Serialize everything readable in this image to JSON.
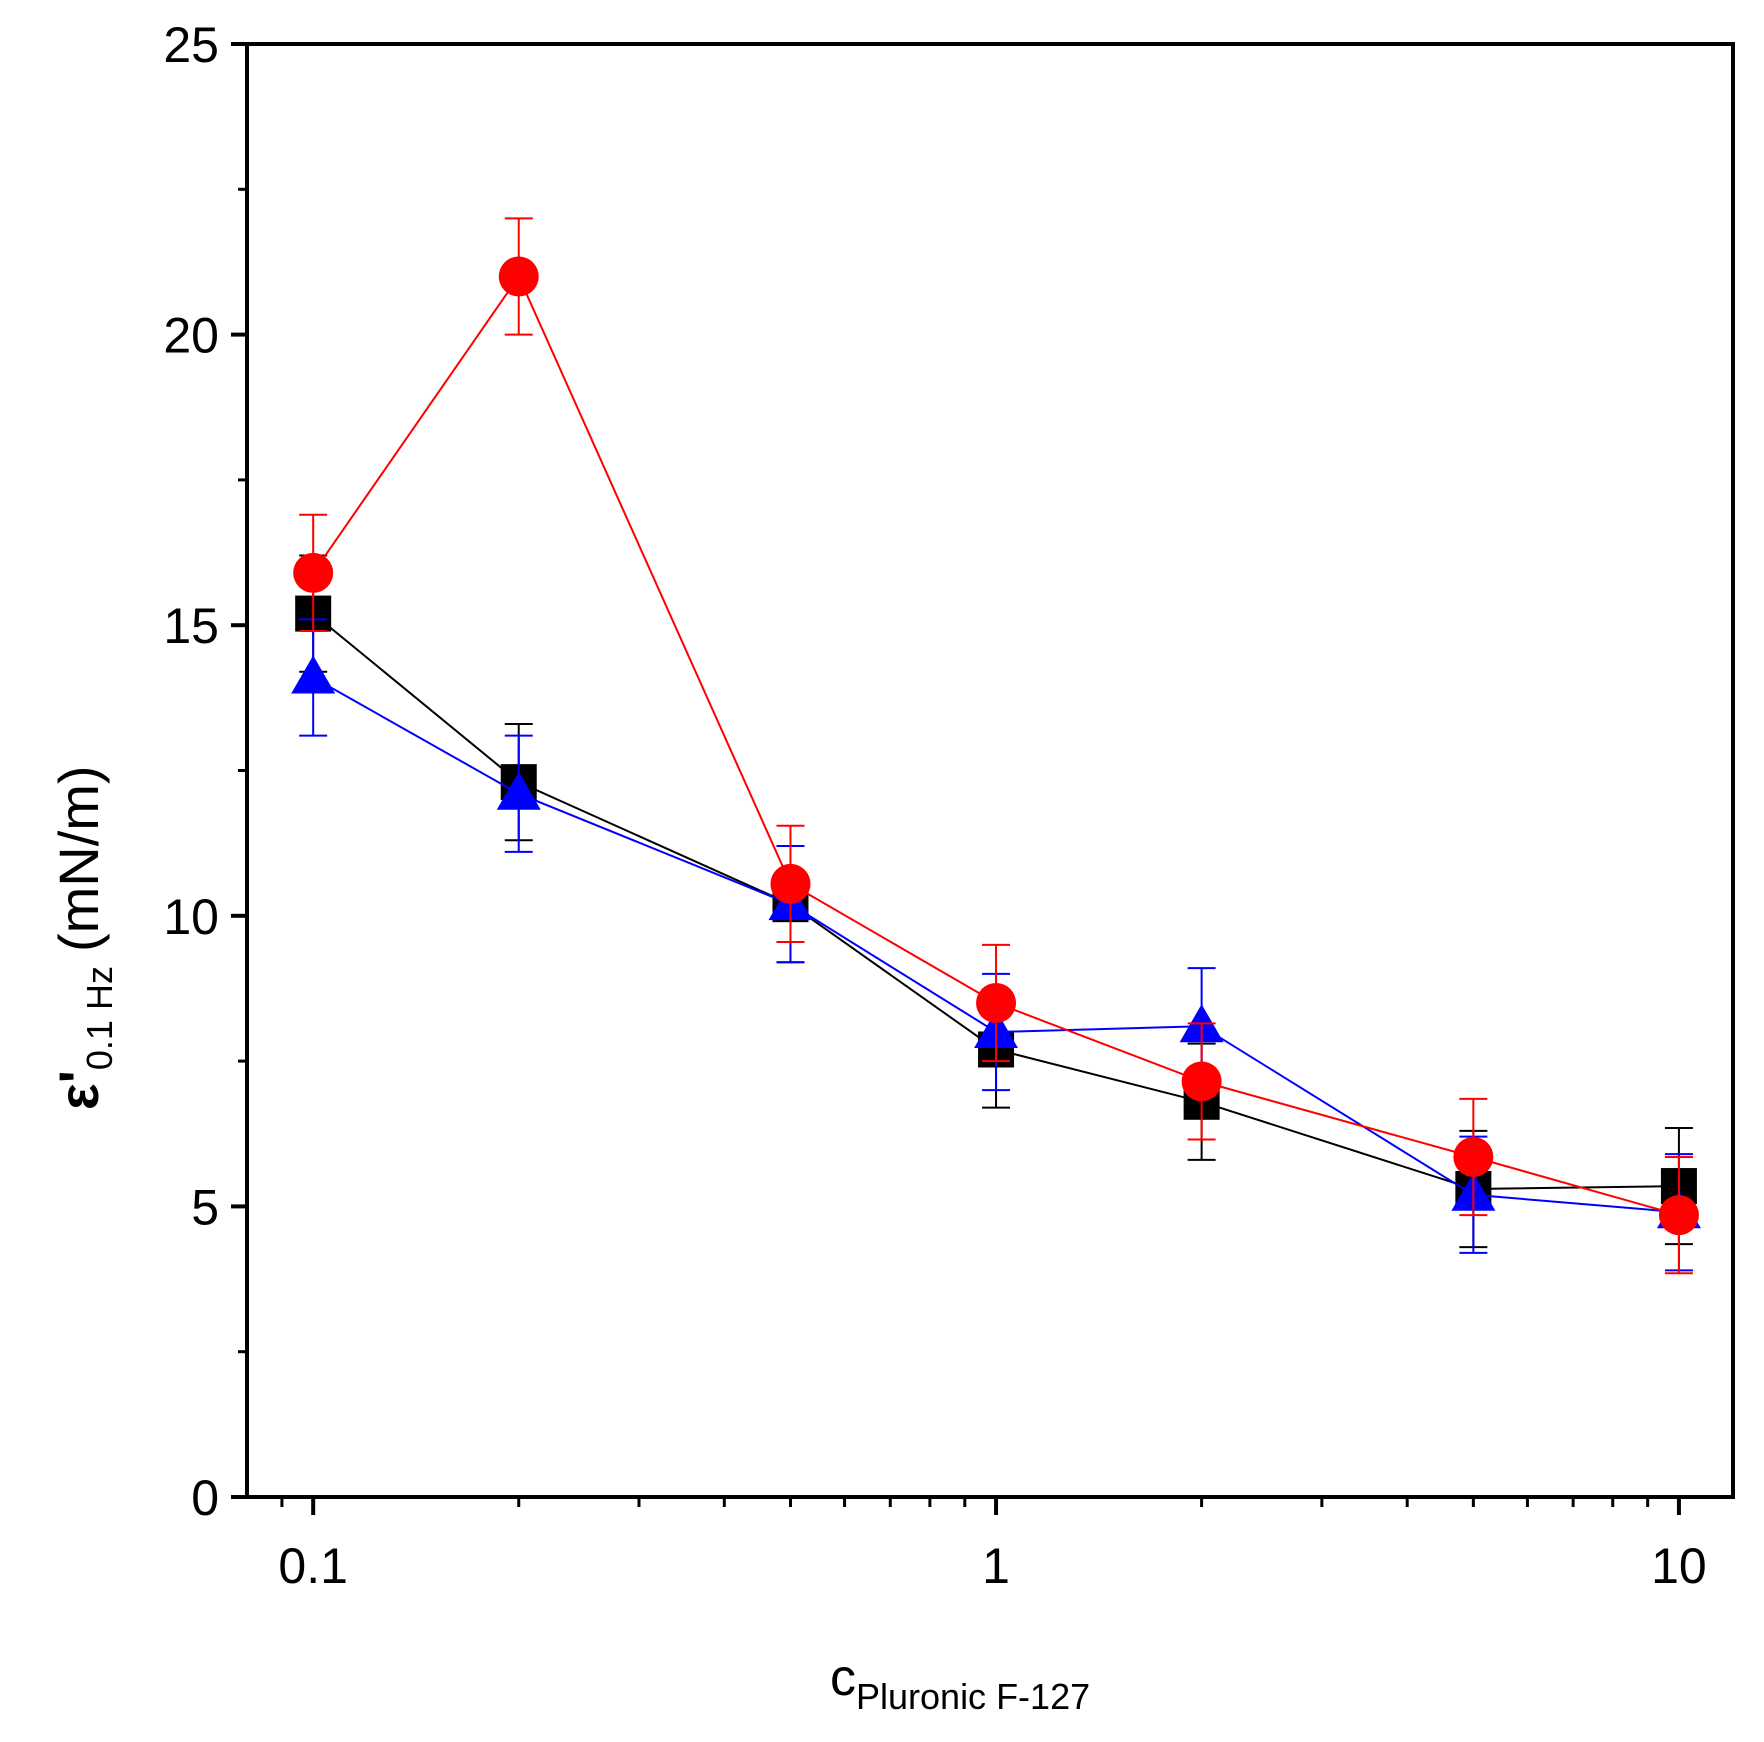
{
  "chart_data": {
    "type": "line",
    "x_scale": "log",
    "xlim": [
      0.08,
      12
    ],
    "ylim": [
      0,
      25
    ],
    "x_ticks": [
      {
        "value": 0.1,
        "label": "0.1"
      },
      {
        "value": 1,
        "label": "1"
      },
      {
        "value": 10,
        "label": "10"
      }
    ],
    "y_ticks": [
      {
        "value": 0,
        "label": "0"
      },
      {
        "value": 5,
        "label": "5"
      },
      {
        "value": 10,
        "label": "10"
      },
      {
        "value": 15,
        "label": "15"
      },
      {
        "value": 20,
        "label": "20"
      },
      {
        "value": 25,
        "label": "25"
      }
    ],
    "y_minor_ticks": [
      2.5,
      7.5,
      12.5,
      17.5,
      22.5
    ],
    "x_minor_ticks": [
      0.09,
      0.2,
      0.3,
      0.4,
      0.5,
      0.6,
      0.7,
      0.8,
      0.9,
      2,
      3,
      4,
      5,
      6,
      7,
      8,
      9
    ],
    "xlabel": {
      "main": "c",
      "sub": "Pluronic F-127"
    },
    "ylabel": {
      "main": "ε'",
      "sub": "0.1 Hz",
      "unit": "(mN/m)"
    },
    "series": [
      {
        "name": "black-squares",
        "color": "#000000",
        "marker": "square",
        "x": [
          0.1,
          0.2,
          0.5,
          1,
          2,
          5,
          10
        ],
        "y": [
          15.2,
          12.3,
          10.2,
          7.7,
          6.8,
          5.3,
          5.35
        ],
        "err": [
          1.0,
          1.0,
          1.0,
          1.0,
          1.0,
          1.0,
          1.0
        ]
      },
      {
        "name": "blue-triangles",
        "color": "#0000ff",
        "marker": "triangle",
        "x": [
          0.1,
          0.2,
          0.5,
          1,
          2,
          5,
          10
        ],
        "y": [
          14.1,
          12.1,
          10.2,
          8.0,
          8.1,
          5.2,
          4.9
        ],
        "err": [
          1.0,
          1.0,
          1.0,
          1.0,
          1.0,
          1.0,
          1.0
        ]
      },
      {
        "name": "red-circles",
        "color": "#ff0000",
        "marker": "circle",
        "x": [
          0.1,
          0.2,
          0.5,
          1,
          2,
          5,
          10
        ],
        "y": [
          15.9,
          21.0,
          10.55,
          8.5,
          7.15,
          5.85,
          4.85
        ],
        "err": [
          1.0,
          1.0,
          1.0,
          1.0,
          1.0,
          1.0,
          1.0
        ]
      }
    ]
  }
}
